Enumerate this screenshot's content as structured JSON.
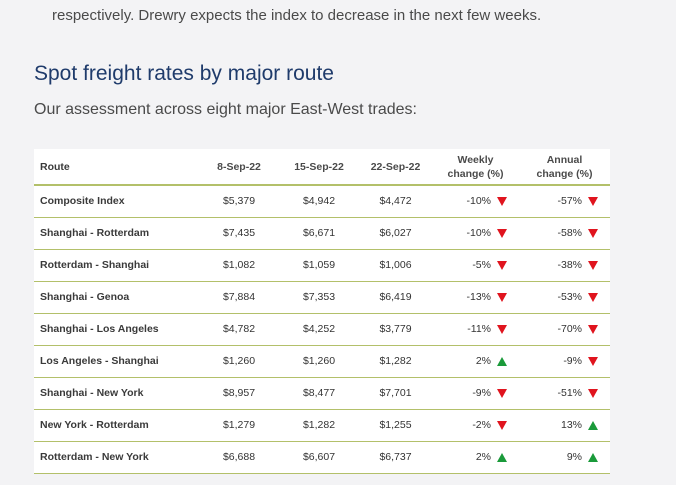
{
  "intro_text": "respectively. Drewry expects the index to decrease in the next few weeks.",
  "heading": "Spot freight rates by major route",
  "subheading": "Our assessment across eight major East-West trades:",
  "colors": {
    "up": "#1a9a3a",
    "down": "#e0141e",
    "rule": "#b3c06a",
    "heading": "#1f3b6b"
  },
  "table": {
    "headers": {
      "route": "Route",
      "d1": "8-Sep-22",
      "d2": "15-Sep-22",
      "d3": "22-Sep-22",
      "weekly_line1": "Weekly",
      "weekly_line2": "change (%)",
      "annual_line1": "Annual",
      "annual_line2": "change (%)"
    },
    "rows": [
      {
        "route": "Composite Index",
        "d1": "$5,379",
        "d2": "$4,942",
        "d3": "$4,472",
        "weekly": "-10%",
        "weekly_dir": "down",
        "annual": "-57%",
        "annual_dir": "down"
      },
      {
        "route": "Shanghai - Rotterdam",
        "d1": "$7,435",
        "d2": "$6,671",
        "d3": "$6,027",
        "weekly": "-10%",
        "weekly_dir": "down",
        "annual": "-58%",
        "annual_dir": "down"
      },
      {
        "route": "Rotterdam - Shanghai",
        "d1": "$1,082",
        "d2": "$1,059",
        "d3": "$1,006",
        "weekly": "-5%",
        "weekly_dir": "down",
        "annual": "-38%",
        "annual_dir": "down"
      },
      {
        "route": "Shanghai - Genoa",
        "d1": "$7,884",
        "d2": "$7,353",
        "d3": "$6,419",
        "weekly": "-13%",
        "weekly_dir": "down",
        "annual": "-53%",
        "annual_dir": "down"
      },
      {
        "route": "Shanghai - Los Angeles",
        "d1": "$4,782",
        "d2": "$4,252",
        "d3": "$3,779",
        "weekly": "-11%",
        "weekly_dir": "down",
        "annual": "-70%",
        "annual_dir": "down"
      },
      {
        "route": "Los Angeles - Shanghai",
        "d1": "$1,260",
        "d2": "$1,260",
        "d3": "$1,282",
        "weekly": "2%",
        "weekly_dir": "up",
        "annual": "-9%",
        "annual_dir": "down"
      },
      {
        "route": "Shanghai - New York",
        "d1": "$8,957",
        "d2": "$8,477",
        "d3": "$7,701",
        "weekly": "-9%",
        "weekly_dir": "down",
        "annual": "-51%",
        "annual_dir": "down"
      },
      {
        "route": "New York - Rotterdam",
        "d1": "$1,279",
        "d2": "$1,282",
        "d3": "$1,255",
        "weekly": "-2%",
        "weekly_dir": "down",
        "annual": "13%",
        "annual_dir": "up"
      },
      {
        "route": "Rotterdam - New York",
        "d1": "$6,688",
        "d2": "$6,607",
        "d3": "$6,737",
        "weekly": "2%",
        "weekly_dir": "up",
        "annual": "9%",
        "annual_dir": "up"
      }
    ]
  }
}
